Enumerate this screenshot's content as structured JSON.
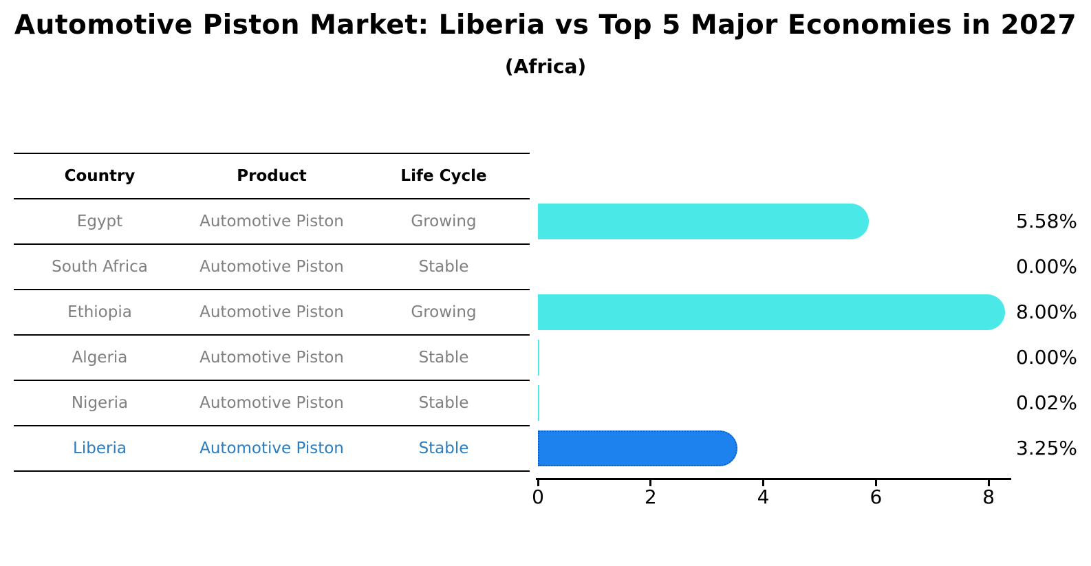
{
  "title": "Automotive Piston Market: Liberia vs Top 5 Major Economies in 2027",
  "subtitle": "(Africa)",
  "table": {
    "columns": [
      "Country",
      "Product",
      "Life Cycle"
    ]
  },
  "rows": [
    {
      "country": "Egypt",
      "product": "Automotive Piston",
      "life_cycle": "Growing",
      "value_pct": 5.58,
      "label": "5.58%",
      "highlight": false,
      "hairline": false
    },
    {
      "country": "South Africa",
      "product": "Automotive Piston",
      "life_cycle": "Stable",
      "value_pct": 0.0,
      "label": "0.00%",
      "highlight": false,
      "hairline": false
    },
    {
      "country": "Ethiopia",
      "product": "Automotive Piston",
      "life_cycle": "Growing",
      "value_pct": 8.0,
      "label": "8.00%",
      "highlight": false,
      "hairline": false
    },
    {
      "country": "Algeria",
      "product": "Automotive Piston",
      "life_cycle": "Stable",
      "value_pct": 0.0,
      "label": "0.00%",
      "highlight": false,
      "hairline": true
    },
    {
      "country": "Nigeria",
      "product": "Automotive Piston",
      "life_cycle": "Stable",
      "value_pct": 0.02,
      "label": "0.02%",
      "highlight": false,
      "hairline": true
    },
    {
      "country": "Liberia",
      "product": "Automotive Piston",
      "life_cycle": "Stable",
      "value_pct": 3.25,
      "label": "3.25%",
      "highlight": true,
      "hairline": false
    }
  ],
  "axis": {
    "ticks": [
      "0",
      "2",
      "4",
      "6",
      "8"
    ]
  },
  "colors": {
    "bar_cyan": "#4be8e8",
    "bar_highlight_blue": "#1e82ee",
    "bar_highlight_border": "#0d5ecb",
    "highlight_text_blue": "#2a7cc0",
    "row_text_gray": "#7f7f7f",
    "text_black": "#000000"
  },
  "chart_data": {
    "type": "bar",
    "orientation": "horizontal",
    "title": "Automotive Piston Market: Liberia vs Top 5 Major Economies in 2027",
    "subtitle": "(Africa)",
    "categories": [
      "Egypt",
      "South Africa",
      "Ethiopia",
      "Algeria",
      "Nigeria",
      "Liberia"
    ],
    "values": [
      5.58,
      0.0,
      8.0,
      0.0,
      0.02,
      3.25
    ],
    "value_labels": [
      "5.58%",
      "0.00%",
      "8.00%",
      "0.00%",
      "0.02%",
      "3.25%"
    ],
    "xlabel": "",
    "ylabel": "",
    "xlim": [
      0,
      8.4
    ],
    "x_ticks": [
      0,
      2,
      4,
      6,
      8
    ],
    "grid": false,
    "legend": false,
    "highlighted_category": "Liberia",
    "table": {
      "columns": [
        "Country",
        "Product",
        "Life Cycle"
      ],
      "rows": [
        [
          "Egypt",
          "Automotive Piston",
          "Growing"
        ],
        [
          "South Africa",
          "Automotive Piston",
          "Stable"
        ],
        [
          "Ethiopia",
          "Automotive Piston",
          "Growing"
        ],
        [
          "Algeria",
          "Automotive Piston",
          "Stable"
        ],
        [
          "Nigeria",
          "Automotive Piston",
          "Stable"
        ],
        [
          "Liberia",
          "Automotive Piston",
          "Stable"
        ]
      ]
    }
  }
}
